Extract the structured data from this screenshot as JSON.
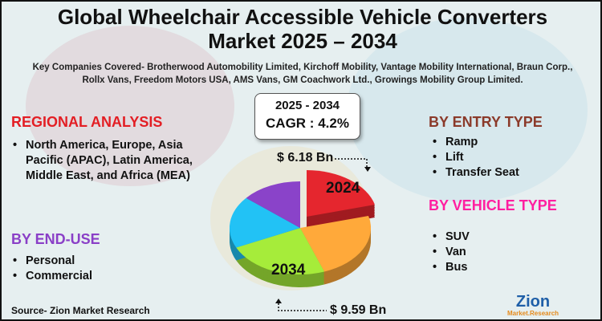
{
  "title": "Global Wheelchair Accessible Vehicle Converters Market 2025 – 2034",
  "title_line1": "Global Wheelchair Accessible Vehicle Converters",
  "title_line2": "Market 2025 – 2034",
  "companies": "Key Companies Covered- Brotherwood Automobility Limited, Kirchoff Mobility, Vantage Mobility International, Braun Corp., Rollx Vans, Freedom Motors USA, AMS Vans, GM Coachwork Ltd., Growings Mobility Group Limited.",
  "cagr_box": {
    "period": "2025 - 2034",
    "cagr": "CAGR : 4.2%"
  },
  "regional": {
    "heading": "REGIONAL ANALYSIS",
    "color": "#e31e24",
    "items": [
      "North America, Europe, Asia Pacific (APAC), Latin America, Middle East, and Africa (MEA)"
    ]
  },
  "end_use": {
    "heading": "BY END-USE",
    "color": "#8a3fc7",
    "items": [
      "Personal",
      "Commercial"
    ]
  },
  "entry_type": {
    "heading": "BY ENTRY TYPE",
    "color": "#8b3a2a",
    "items": [
      "Ramp",
      "Lift",
      "Transfer Seat"
    ]
  },
  "vehicle_type": {
    "heading": "BY VEHICLE TYPE",
    "color": "#ff1fa0",
    "items": [
      "SUV",
      "Van",
      "Bus"
    ]
  },
  "pie": {
    "label_2024": "2024",
    "label_2034": "2034",
    "value_2024": "$ 6.18 Bn",
    "value_2034": "$ 9.59 Bn",
    "colors": [
      "#e5262e",
      "#ffa93a",
      "#a6ec3a",
      "#22c2f5",
      "#8a43c9"
    ]
  },
  "source": "Source- Zion Market Research",
  "logo": {
    "text": "Zion",
    "sub": "Market.Research"
  }
}
